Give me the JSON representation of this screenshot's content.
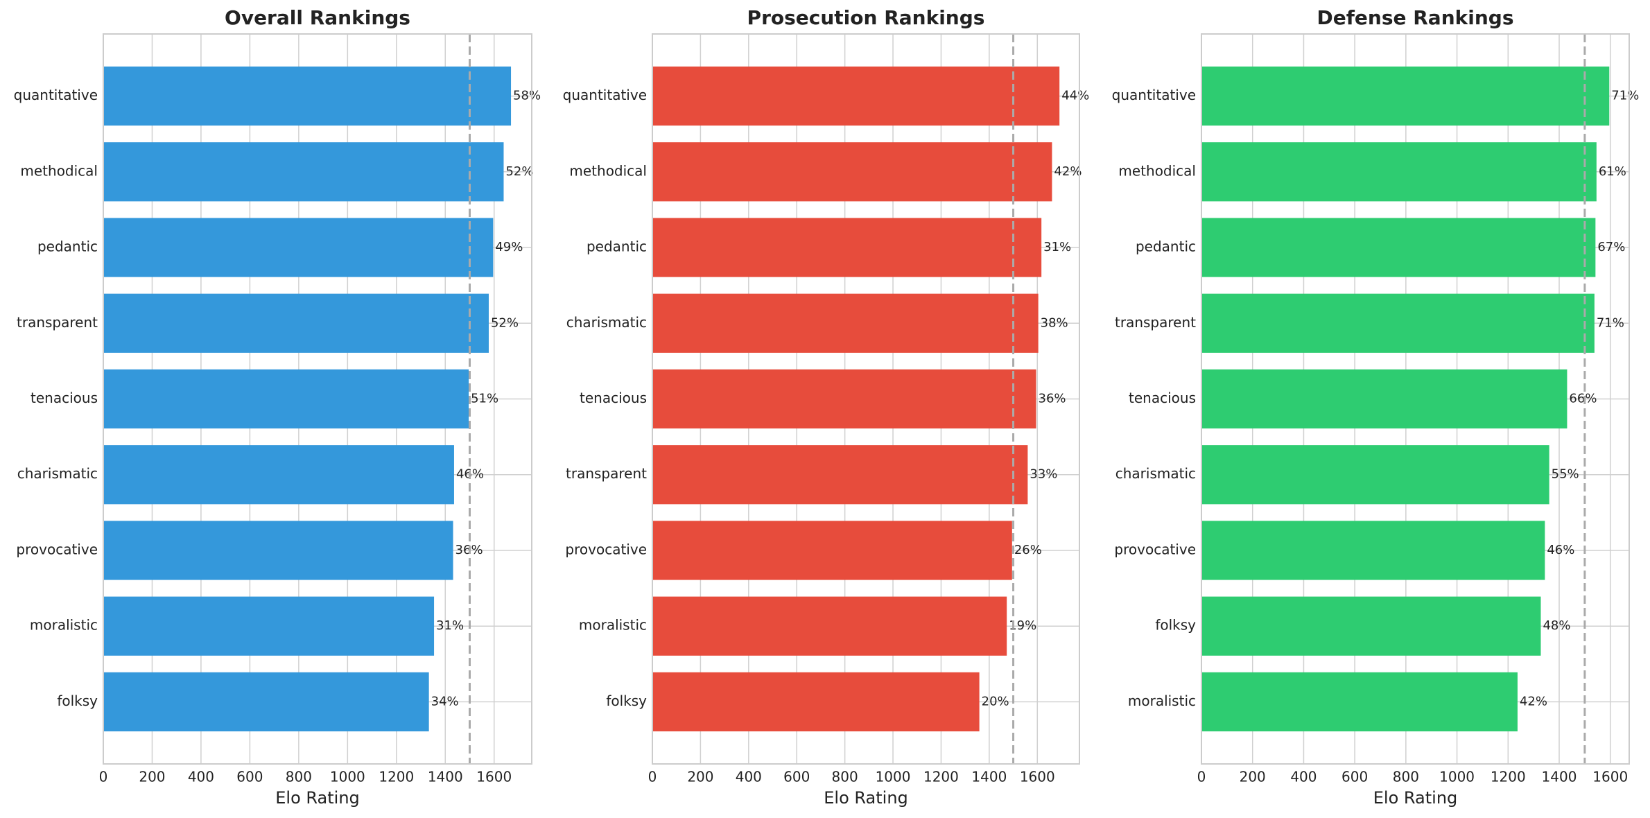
{
  "chart_data": [
    {
      "type": "bar",
      "orientation": "horizontal",
      "title": "Overall Rankings",
      "xlabel": "Elo Rating",
      "categories": [
        "quantitative",
        "methodical",
        "pedantic",
        "transparent",
        "tenacious",
        "charismatic",
        "provocative",
        "moralistic",
        "folksy"
      ],
      "values": [
        1669,
        1639,
        1596,
        1578,
        1496,
        1436,
        1432,
        1354,
        1333
      ],
      "annotations": [
        "58%",
        "52%",
        "49%",
        "52%",
        "51%",
        "46%",
        "36%",
        "31%",
        "34%"
      ],
      "color": "#3498db",
      "xlim": [
        0,
        1754
      ],
      "xticks": [
        0,
        200,
        400,
        600,
        800,
        1000,
        1200,
        1400,
        1600
      ],
      "reference_line": 1500,
      "grid": true
    },
    {
      "type": "bar",
      "orientation": "horizontal",
      "title": "Prosecution Rankings",
      "xlabel": "Elo Rating",
      "categories": [
        "quantitative",
        "methodical",
        "pedantic",
        "charismatic",
        "tenacious",
        "transparent",
        "provocative",
        "moralistic",
        "folksy"
      ],
      "values": [
        1692,
        1661,
        1617,
        1604,
        1595,
        1560,
        1495,
        1473,
        1359
      ],
      "annotations": [
        "44%",
        "42%",
        "31%",
        "38%",
        "36%",
        "33%",
        "26%",
        "19%",
        "20%"
      ],
      "color": "#e74c3c",
      "xlim": [
        0,
        1775
      ],
      "xticks": [
        0,
        200,
        400,
        600,
        800,
        1000,
        1200,
        1400,
        1600
      ],
      "reference_line": 1500,
      "grid": true
    },
    {
      "type": "bar",
      "orientation": "horizontal",
      "title": "Defense Rankings",
      "xlabel": "Elo Rating",
      "categories": [
        "quantitative",
        "methodical",
        "pedantic",
        "transparent",
        "tenacious",
        "charismatic",
        "provocative",
        "folksy",
        "moralistic"
      ],
      "values": [
        1596,
        1546,
        1542,
        1538,
        1431,
        1361,
        1344,
        1328,
        1237
      ],
      "annotations": [
        "71%",
        "61%",
        "67%",
        "71%",
        "66%",
        "55%",
        "46%",
        "48%",
        "42%"
      ],
      "color": "#2ecc71",
      "xlim": [
        0,
        1674
      ],
      "xticks": [
        0,
        200,
        400,
        600,
        800,
        1000,
        1200,
        1400,
        1600
      ],
      "reference_line": 1500,
      "grid": true
    }
  ]
}
